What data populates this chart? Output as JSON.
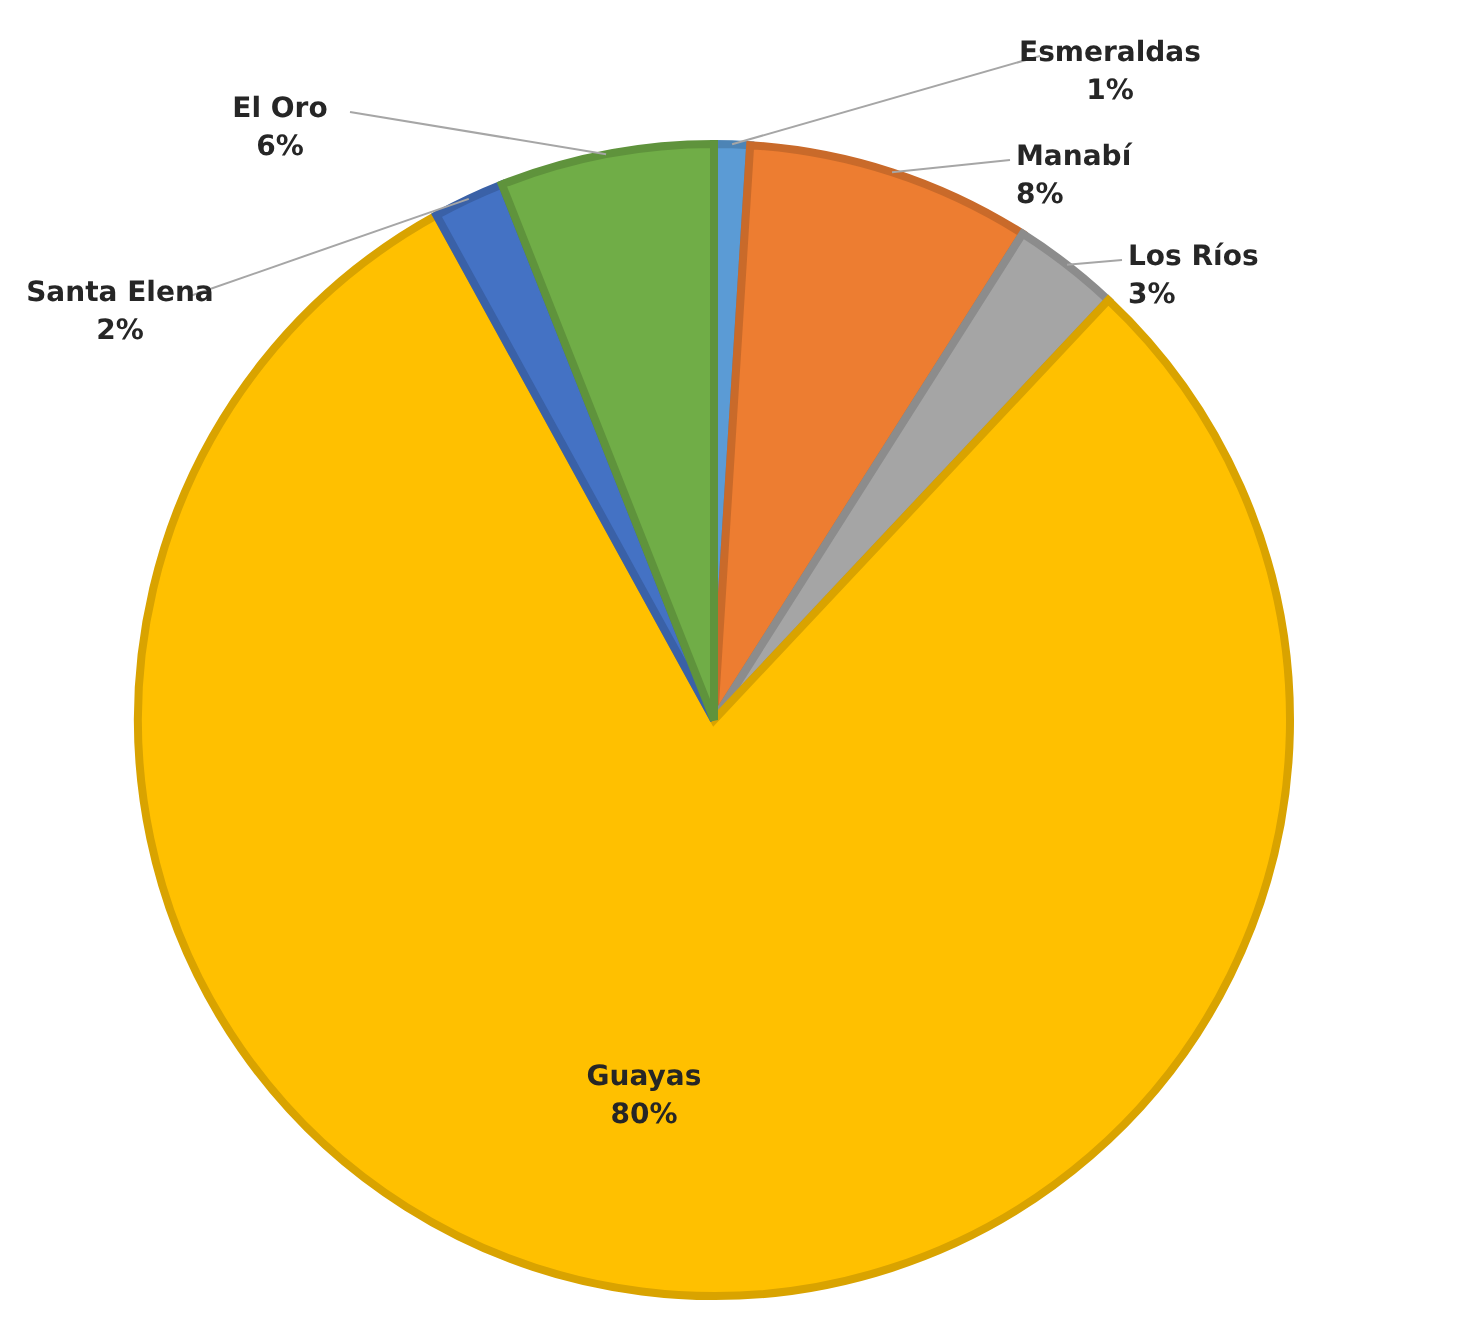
{
  "chart_data": {
    "type": "pie",
    "categories": [
      "Esmeraldas",
      "Manabí",
      "Los Ríos",
      "Guayas",
      "Santa Elena",
      "El Oro"
    ],
    "values": [
      1,
      8,
      3,
      80,
      2,
      6
    ],
    "colors": [
      "#5b9bd5",
      "#ed7d31",
      "#a5a5a5",
      "#ffc000",
      "#4472c4",
      "#70ad47"
    ],
    "value_labels": [
      "1%",
      "8%",
      "3%",
      "80%",
      "2%",
      "6%"
    ],
    "legend": false
  }
}
